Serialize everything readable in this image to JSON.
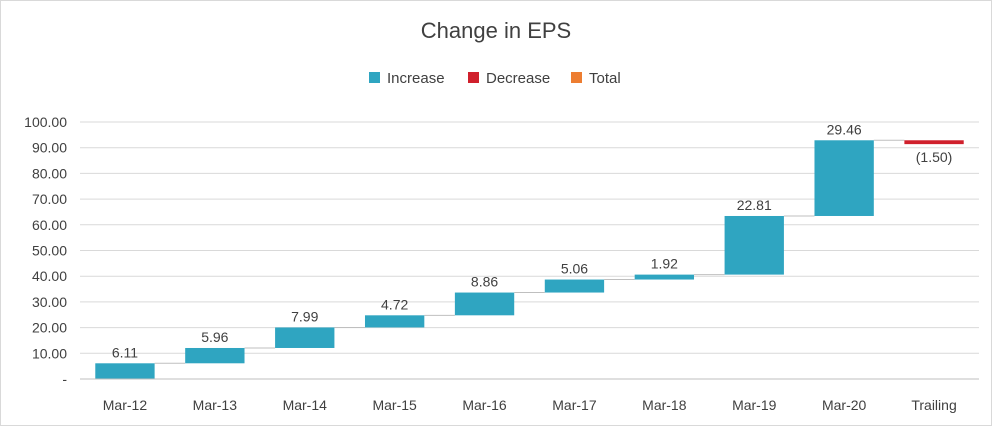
{
  "chart_data": {
    "type": "bar",
    "subtype": "waterfall",
    "title": "Change in EPS",
    "xlabel": "",
    "ylabel": "",
    "ylim": [
      0,
      100
    ],
    "yticks": [
      0,
      10,
      20,
      30,
      40,
      50,
      60,
      70,
      80,
      90,
      100
    ],
    "ytick_labels": [
      "-",
      "10.00",
      "20.00",
      "30.00",
      "40.00",
      "50.00",
      "60.00",
      "70.00",
      "80.00",
      "90.00",
      "100.00"
    ],
    "categories": [
      "Mar-12",
      "Mar-13",
      "Mar-14",
      "Mar-15",
      "Mar-16",
      "Mar-17",
      "Mar-18",
      "Mar-19",
      "Mar-20",
      "Trailing"
    ],
    "values": [
      6.11,
      5.96,
      7.99,
      4.72,
      8.86,
      5.06,
      1.92,
      22.81,
      29.46,
      -1.5
    ],
    "labels": [
      "6.11",
      "5.96",
      "7.99",
      "4.72",
      "8.86",
      "5.06",
      "1.92",
      "22.81",
      "29.46",
      "(1.50)"
    ],
    "kinds": [
      "increase",
      "increase",
      "increase",
      "increase",
      "increase",
      "increase",
      "increase",
      "increase",
      "increase",
      "decrease"
    ],
    "grid": true,
    "legend_position": "top",
    "legend": [
      {
        "name": "Increase",
        "color": "#2FA5C1"
      },
      {
        "name": "Decrease",
        "color": "#D0202C"
      },
      {
        "name": "Total",
        "color": "#ED7D31"
      }
    ]
  }
}
